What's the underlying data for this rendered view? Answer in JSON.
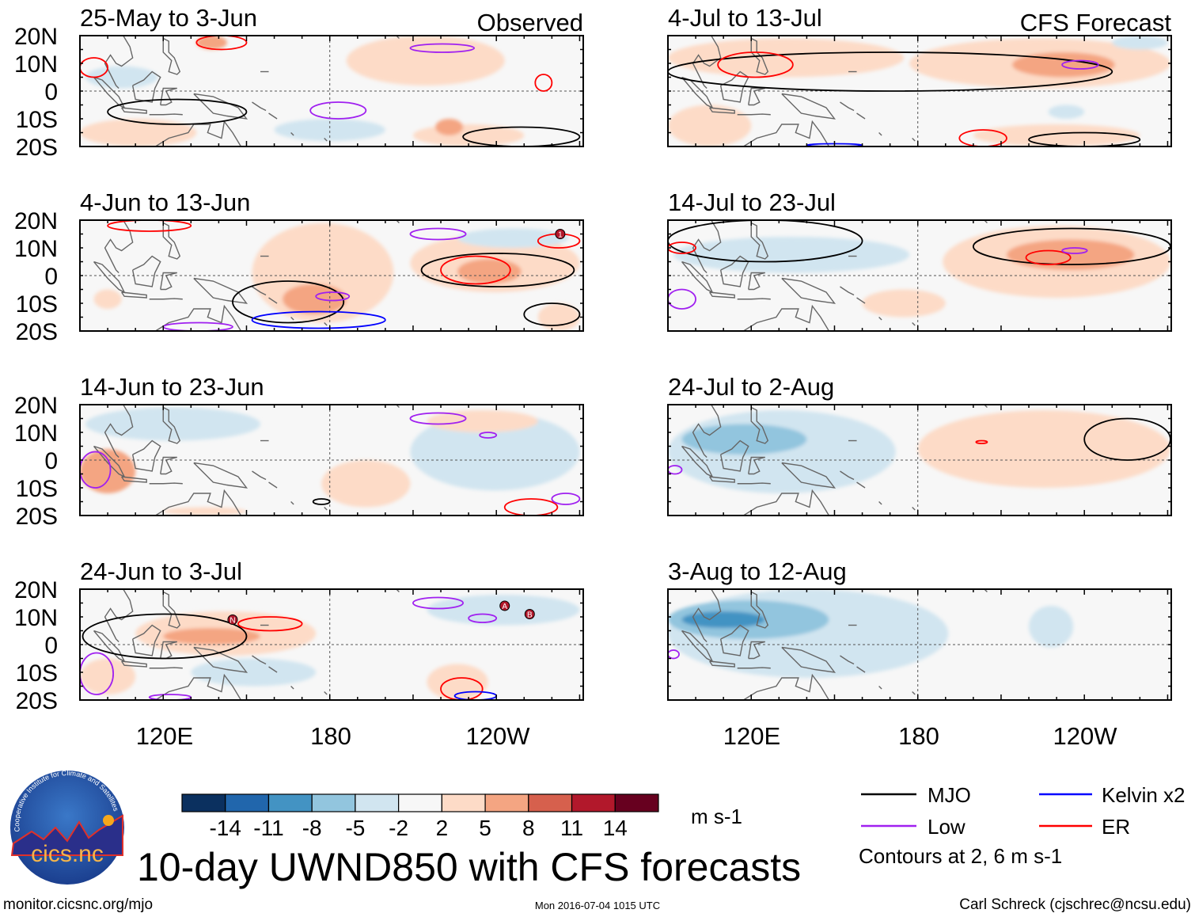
{
  "figure": {
    "title": "10-day UWND850 with CFS forecasts",
    "observed_label": "Observed",
    "forecast_label": "CFS Forecast",
    "lat_labels": [
      "20N",
      "10N",
      "0",
      "10S",
      "20S"
    ],
    "lon_labels": [
      "120E",
      "180",
      "120W"
    ],
    "units": "m s-1",
    "footer_left": "monitor.cicsnc.org/mjo",
    "footer_center": "Mon 2016-07-04 1015 UTC",
    "footer_right": "Carl Schreck (cjschrec@ncsu.edu)",
    "logo_text": "cics.nc",
    "logo_ring_text": "Cooperative Institute for Climate and Satellites"
  },
  "colorbar": {
    "labels": [
      "-14",
      "-11",
      "-8",
      "-5",
      "-2",
      "2",
      "5",
      "8",
      "11",
      "14"
    ],
    "colors": [
      "#0b305f",
      "#2166ac",
      "#4393c3",
      "#92c5de",
      "#d1e5f0",
      "#f7f7f7",
      "#fddbc7",
      "#f4a582",
      "#d6604d",
      "#b2182b",
      "#67001f"
    ]
  },
  "legend": {
    "items": [
      {
        "label": "MJO",
        "color": "#000000"
      },
      {
        "label": "Kelvin x2",
        "color": "#0000ff"
      },
      {
        "label": "Low",
        "color": "#a020f0"
      },
      {
        "label": "ER",
        "color": "#ff0000"
      }
    ],
    "note": "Contours at 2, 6 m s-1"
  },
  "chart_data": {
    "type": "heatmap",
    "variable": "UWND850 anomaly",
    "lon_range": [
      90,
      270
    ],
    "lat_range": [
      -20,
      20
    ],
    "feature_format": "[lon_min, lon_max, lat_min, lat_max, level_or_type]",
    "panels": [
      {
        "title": "25-May to 3-Jun",
        "column": "observed",
        "shading": [
          [
            186,
            243,
            2,
            20,
            1
          ],
          [
            90,
            132,
            -20,
            -10,
            1
          ],
          [
            132,
            143,
            15,
            20,
            2
          ],
          [
            92,
            118,
            1,
            9,
            -1
          ],
          [
            210,
            250,
            -20,
            -12,
            1
          ],
          [
            160,
            200,
            -18,
            -10,
            -1
          ],
          [
            218,
            228,
            -16,
            -10,
            2
          ]
        ],
        "contours": [
          [
            209,
            232,
            14,
            17,
            "low"
          ],
          [
            173,
            193,
            -10,
            -4,
            "low"
          ],
          [
            254,
            260,
            0,
            6,
            "er"
          ],
          [
            132,
            150,
            15,
            20,
            "er"
          ],
          [
            100,
            150,
            -12,
            -3,
            "mjo"
          ],
          [
            228,
            270,
            -20,
            -13,
            "mjo"
          ],
          [
            90,
            100,
            5,
            12,
            "er"
          ]
        ],
        "markers": []
      },
      {
        "title": "4-Jul to 13-Jul",
        "column": "forecast",
        "shading": [
          [
            177,
            271,
            1,
            19,
            1
          ],
          [
            214,
            251,
            5,
            14,
            2
          ],
          [
            90,
            175,
            5,
            19,
            1
          ],
          [
            250,
            270,
            15,
            20,
            -1
          ],
          [
            90,
            120,
            -20,
            -5,
            1
          ],
          [
            200,
            260,
            -20,
            -12,
            1
          ],
          [
            227,
            240,
            -10,
            -5,
            -1
          ]
        ],
        "contours": [
          [
            90,
            250,
            0,
            14,
            "mjo"
          ],
          [
            108,
            135,
            5,
            14,
            "er"
          ],
          [
            232,
            245,
            8,
            11,
            "low"
          ],
          [
            195,
            212,
            -20,
            -14,
            "er"
          ],
          [
            220,
            260,
            -20,
            -15,
            "mjo"
          ],
          [
            140,
            160,
            -20,
            -19,
            "kelvin"
          ]
        ],
        "markers": []
      },
      {
        "title": "4-Jun to 13-Jun",
        "column": "observed",
        "shading": [
          [
            152,
            203,
            -17,
            19,
            1
          ],
          [
            163,
            186,
            -14,
            -3,
            2
          ],
          [
            209,
            270,
            -6,
            15,
            1
          ],
          [
            226,
            249,
            -3,
            6,
            2
          ],
          [
            226,
            266,
            10,
            17,
            -1
          ],
          [
            95,
            105,
            -12,
            -5,
            1
          ],
          [
            255,
            270,
            -20,
            -10,
            1
          ]
        ],
        "contours": [
          [
            213,
            268,
            -4,
            8,
            "mjo"
          ],
          [
            145,
            185,
            -17,
            -2,
            "mjo"
          ],
          [
            152,
            200,
            -19,
            -13,
            "kelvin"
          ],
          [
            220,
            245,
            -3,
            7,
            "er"
          ],
          [
            209,
            229,
            13,
            17,
            "low"
          ],
          [
            175,
            187,
            -9,
            -6,
            "low"
          ],
          [
            255,
            270,
            10,
            15,
            "er"
          ],
          [
            100,
            130,
            16,
            20,
            "er"
          ],
          [
            250,
            270,
            -18,
            -10,
            "mjo"
          ],
          [
            120,
            145,
            -20,
            -17,
            "low"
          ]
        ],
        "markers": [
          {
            "label": "1",
            "lon": 263,
            "lat": 15
          }
        ]
      },
      {
        "title": "14-Jul to 23-Jul",
        "column": "forecast",
        "shading": [
          [
            189,
            271,
            -8,
            18,
            1
          ],
          [
            212,
            258,
            2,
            13,
            2
          ],
          [
            92,
            177,
            1,
            14,
            -1
          ],
          [
            160,
            190,
            -15,
            -5,
            1
          ]
        ],
        "contours": [
          [
            200,
            271,
            4,
            17,
            "mjo"
          ],
          [
            219,
            235,
            4,
            9,
            "er"
          ],
          [
            232,
            241,
            8,
            10,
            "low"
          ],
          [
            90,
            160,
            5,
            20,
            "mjo"
          ],
          [
            90,
            100,
            -12,
            -5,
            "low"
          ],
          [
            90,
            100,
            8,
            12,
            "er"
          ]
        ],
        "markers": []
      },
      {
        "title": "14-Jun to 23-Jun",
        "column": "observed",
        "shading": [
          [
            209,
            270,
            -11,
            17,
            -1
          ],
          [
            92,
            155,
            7,
            19,
            -1
          ],
          [
            177,
            209,
            -17,
            0,
            1
          ],
          [
            90,
            110,
            -12,
            4,
            2
          ],
          [
            215,
            255,
            10,
            18,
            1
          ],
          [
            120,
            150,
            -20,
            -17,
            1
          ]
        ],
        "contours": [
          [
            209,
            229,
            13,
            17,
            "low"
          ],
          [
            234,
            240,
            8,
            10,
            "low"
          ],
          [
            243,
            262,
            -20,
            -14,
            "er"
          ],
          [
            90,
            101,
            -10,
            3,
            "low"
          ],
          [
            174,
            180,
            -16,
            -14,
            "mjo"
          ],
          [
            260,
            270,
            -16,
            -12,
            "low"
          ]
        ],
        "markers": []
      },
      {
        "title": "24-Jul to 2-Aug",
        "column": "forecast",
        "shading": [
          [
            90,
            172,
            -12,
            18,
            -1
          ],
          [
            95,
            140,
            2,
            13,
            -2
          ],
          [
            180,
            271,
            -10,
            18,
            1
          ],
          [
            120,
            150,
            -10,
            -5,
            -1
          ]
        ],
        "contours": [
          [
            240,
            271,
            0,
            15,
            "mjo"
          ],
          [
            201,
            205,
            6,
            7,
            "er"
          ],
          [
            90,
            95,
            -5,
            -2,
            "low"
          ]
        ],
        "markers": []
      },
      {
        "title": "24-Jun to 3-Jul",
        "column": "observed",
        "shading": [
          [
            215,
            270,
            7,
            18,
            -1
          ],
          [
            110,
            175,
            -4,
            12,
            1
          ],
          [
            120,
            155,
            0,
            6,
            2
          ],
          [
            215,
            237,
            -20,
            -7,
            1
          ],
          [
            130,
            175,
            -15,
            -5,
            -1
          ],
          [
            90,
            110,
            -18,
            -5,
            1
          ]
        ],
        "contours": [
          [
            91,
            150,
            -5,
            11,
            "mjo"
          ],
          [
            147,
            170,
            5,
            10,
            "er"
          ],
          [
            210,
            228,
            13,
            17,
            "low"
          ],
          [
            230,
            240,
            8,
            11,
            "low"
          ],
          [
            220,
            235,
            -20,
            -12,
            "er"
          ],
          [
            90,
            102,
            -18,
            -3,
            "low"
          ],
          [
            225,
            240,
            -20,
            -17,
            "kelvin"
          ],
          [
            115,
            130,
            -20,
            -18,
            "low"
          ]
        ],
        "markers": [
          {
            "label": "A",
            "lon": 243,
            "lat": 14
          },
          {
            "label": "B",
            "lon": 252,
            "lat": 11
          },
          {
            "label": "N",
            "lon": 145,
            "lat": 9
          }
        ]
      },
      {
        "title": "3-Aug to 12-Aug",
        "column": "forecast",
        "shading": [
          [
            90,
            191,
            -12,
            20,
            -1
          ],
          [
            90,
            148,
            2,
            16,
            -2
          ],
          [
            95,
            125,
            6,
            12,
            -3
          ],
          [
            220,
            236,
            -1,
            14,
            -1
          ]
        ],
        "contours": [
          [
            90,
            94,
            -5,
            -2,
            "low"
          ]
        ],
        "markers": []
      }
    ]
  }
}
